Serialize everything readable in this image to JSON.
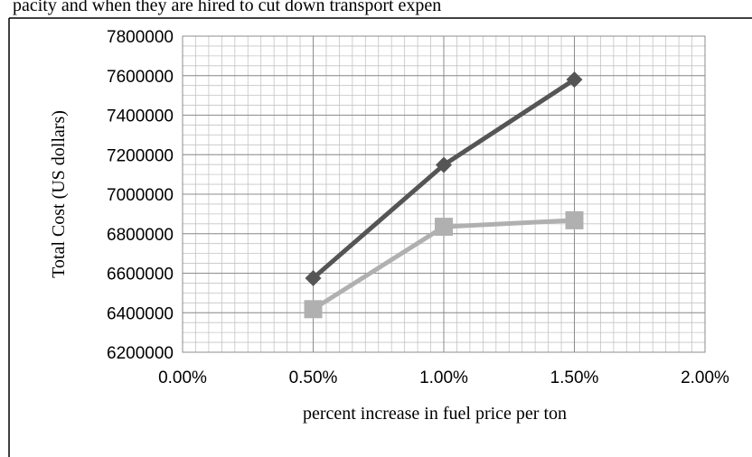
{
  "cropped_text": "pacity and when they are hired to cut down transport expen",
  "chart_data": {
    "type": "line",
    "title": "",
    "xlabel": "percent increase in fuel price per ton",
    "ylabel": "Total Cost (US dollars)",
    "x_ticks": [
      0.0,
      0.5,
      1.0,
      1.5,
      2.0
    ],
    "x_tick_labels": [
      "0.00%",
      "0.50%",
      "1.00%",
      "1.50%",
      "2.00%"
    ],
    "y_ticks": [
      6200000,
      6400000,
      6600000,
      6800000,
      7000000,
      7200000,
      7400000,
      7600000,
      7800000
    ],
    "y_tick_labels": [
      "6200000",
      "6400000",
      "6600000",
      "6800000",
      "7000000",
      "7200000",
      "7400000",
      "7600000",
      "7800000"
    ],
    "xlim": [
      0.0,
      2.0
    ],
    "ylim": [
      6200000,
      7800000
    ],
    "grid": true,
    "series": [
      {
        "marker": "diamond",
        "color": "#555555",
        "x": [
          0.5,
          1.0,
          1.5
        ],
        "y": [
          6575000,
          7148000,
          7580000
        ]
      },
      {
        "marker": "square",
        "color": "#b0b0b0",
        "x": [
          0.5,
          1.0,
          1.5
        ],
        "y": [
          6418000,
          6835000,
          6868000
        ]
      }
    ]
  }
}
